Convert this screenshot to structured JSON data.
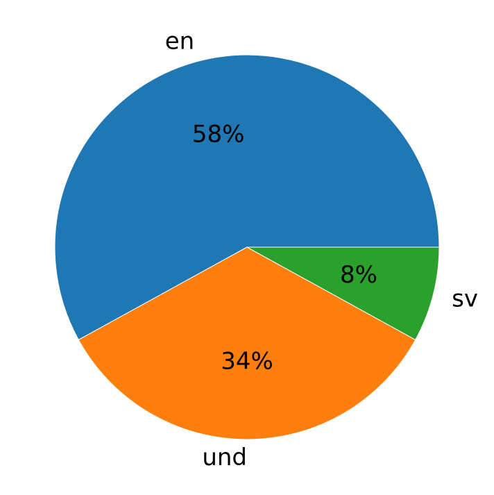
{
  "chart_data": {
    "type": "pie",
    "labels": [
      "en",
      "und",
      "sv"
    ],
    "values": [
      58,
      34,
      8
    ],
    "percent_labels": [
      "58%",
      "34%",
      "8%"
    ],
    "colors": [
      "#1f77b4",
      "#ff7f0e",
      "#2ca02c"
    ],
    "start_angle_deg": 0,
    "direction": "counterclockwise",
    "title": "",
    "legend": "none"
  }
}
